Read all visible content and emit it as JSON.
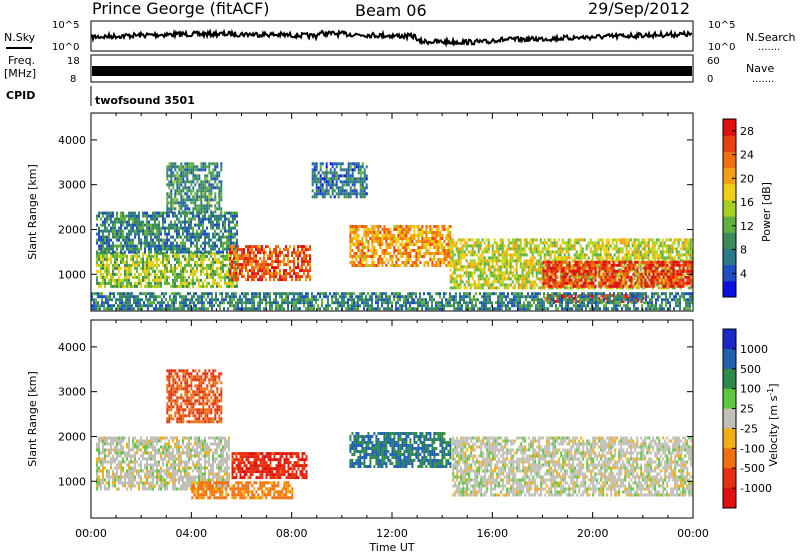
{
  "header": {
    "station": "Prince George (fitACF)",
    "beam": "Beam 06",
    "date": "29/Sep/2012"
  },
  "panels": {
    "nsky_label": "N.Sky",
    "nsky_ticks": [
      "10^5",
      "10^0"
    ],
    "nsearch_label": "N.Search",
    "nsearch_ticks": [
      "10^5",
      "10^0"
    ],
    "freq_label_1": "Freq.",
    "freq_label_2": "[MHz]",
    "freq_ticks": [
      "18",
      "8"
    ],
    "nave_label": "Nave",
    "nave_ticks": [
      "60",
      "0"
    ],
    "cpid_label": "CPID",
    "cpid_value": "twofsound 3501",
    "dots": "......."
  },
  "chart_data": [
    {
      "type": "heatmap",
      "name": "power",
      "ylabel": "Slant Range [km]",
      "xlabel": "Time UT",
      "x_ticks": [
        "00:00",
        "04:00",
        "08:00",
        "12:00",
        "16:00",
        "20:00",
        "00:00"
      ],
      "y_ticks": [
        "1000",
        "2000",
        "3000",
        "4000"
      ],
      "ylim": [
        180,
        4600
      ],
      "xlim_hours": [
        0,
        24
      ],
      "colorbar": {
        "label": "Power [dB]",
        "ticks": [
          "4",
          "8",
          "12",
          "16",
          "20",
          "24",
          "28"
        ],
        "range": [
          0,
          30
        ],
        "colors": [
          "#0a10e0",
          "#1f4fc0",
          "#2a7a8a",
          "#3a8a5a",
          "#60b040",
          "#a8d020",
          "#f0d010",
          "#f0a010",
          "#f07010",
          "#e84010",
          "#e01010"
        ]
      },
      "regions": [
        {
          "t0": 0.2,
          "t1": 5.8,
          "r0": 700,
          "r1": 1500,
          "value": 14
        },
        {
          "t0": 0.2,
          "t1": 5.8,
          "r0": 1500,
          "r1": 2400,
          "value": 8
        },
        {
          "t0": 3.0,
          "t1": 5.2,
          "r0": 2400,
          "r1": 3500,
          "value": 9
        },
        {
          "t0": 5.5,
          "t1": 8.7,
          "r0": 900,
          "r1": 1650,
          "value": 25
        },
        {
          "t0": 8.8,
          "t1": 11.0,
          "r0": 2700,
          "r1": 3500,
          "value": 7
        },
        {
          "t0": 10.3,
          "t1": 14.3,
          "r0": 1200,
          "r1": 2100,
          "value": 21
        },
        {
          "t0": 14.3,
          "t1": 24.0,
          "r0": 700,
          "r1": 1800,
          "value": 16
        },
        {
          "t0": 18.0,
          "t1": 24.0,
          "r0": 700,
          "r1": 1300,
          "value": 27
        },
        {
          "t0": 18.0,
          "t1": 22.0,
          "r0": 380,
          "r1": 560,
          "value": 28
        },
        {
          "t0": 0.0,
          "t1": 24.0,
          "r0": 200,
          "r1": 600,
          "value": 8
        }
      ]
    },
    {
      "type": "heatmap",
      "name": "velocity",
      "ylabel": "Slant Range [km]",
      "xlabel": "Time UT",
      "x_ticks": [
        "00:00",
        "04:00",
        "08:00",
        "12:00",
        "16:00",
        "20:00",
        "00:00"
      ],
      "y_ticks": [
        "1000",
        "2000",
        "3000",
        "4000"
      ],
      "ylim": [
        180,
        4600
      ],
      "xlim_hours": [
        0,
        24
      ],
      "colorbar": {
        "label": "Velocity [m s^-1]",
        "ticks": [
          "1000",
          "500",
          "100",
          "25",
          "-25",
          "-100",
          "-500",
          "-1000"
        ],
        "colors": [
          "#1a28c8",
          "#2060b0",
          "#2e8a4a",
          "#60c840",
          "#c0c0b8",
          "#f0b010",
          "#f07010",
          "#e83010",
          "#e01010"
        ]
      },
      "regions": [
        {
          "t0": 0.2,
          "t1": 5.5,
          "r0": 800,
          "r1": 2000,
          "value": 0
        },
        {
          "t0": 14.4,
          "t1": 24.0,
          "r0": 700,
          "r1": 2000,
          "value": 0
        },
        {
          "t0": 5.6,
          "t1": 8.6,
          "r0": 1100,
          "r1": 1650,
          "value": -700
        },
        {
          "t0": 3.0,
          "t1": 5.2,
          "r0": 2300,
          "r1": 3500,
          "value": -300
        },
        {
          "t0": 10.3,
          "t1": 14.3,
          "r0": 1300,
          "r1": 2100,
          "value": 300
        },
        {
          "t0": 4.0,
          "t1": 8.0,
          "r0": 600,
          "r1": 1000,
          "value": -150
        }
      ]
    }
  ]
}
